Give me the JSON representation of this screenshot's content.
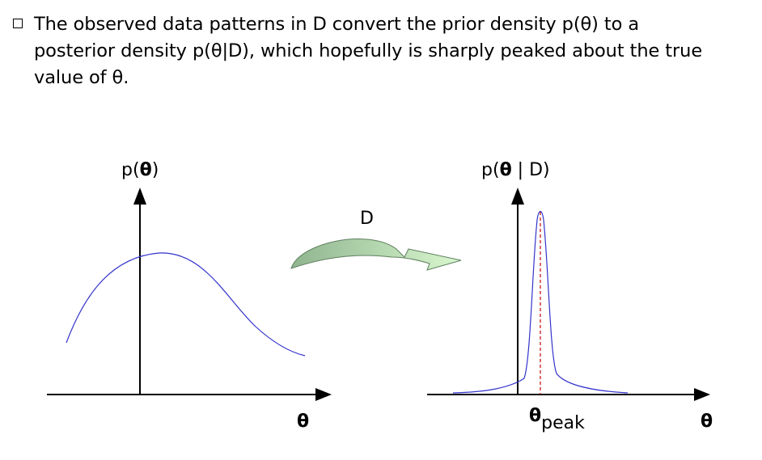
{
  "bullet": {
    "line1": "The observed data patterns in D convert the prior density p(θ) to a",
    "line2": "posterior density p(θ|D), which hopefully is sharply peaked about the true",
    "line3": "value of θ."
  },
  "left_plot": {
    "ylabel_prefix": "p(",
    "ylabel_theta": "θ",
    "ylabel_suffix": ")",
    "xlabel": "θ"
  },
  "arrow": {
    "label": "D",
    "colors": {
      "start": "#8fb58f",
      "end": "#d9f7cf"
    }
  },
  "right_plot": {
    "ylabel_prefix": "p(",
    "ylabel_theta": "θ",
    "ylabel_suffix": " | D)",
    "peak_theta": "θ",
    "peak_sub": "peak",
    "xlabel": "θ"
  },
  "colors": {
    "curve": "#3333cc",
    "dashed": "#cc0000",
    "axis": "#000000"
  }
}
